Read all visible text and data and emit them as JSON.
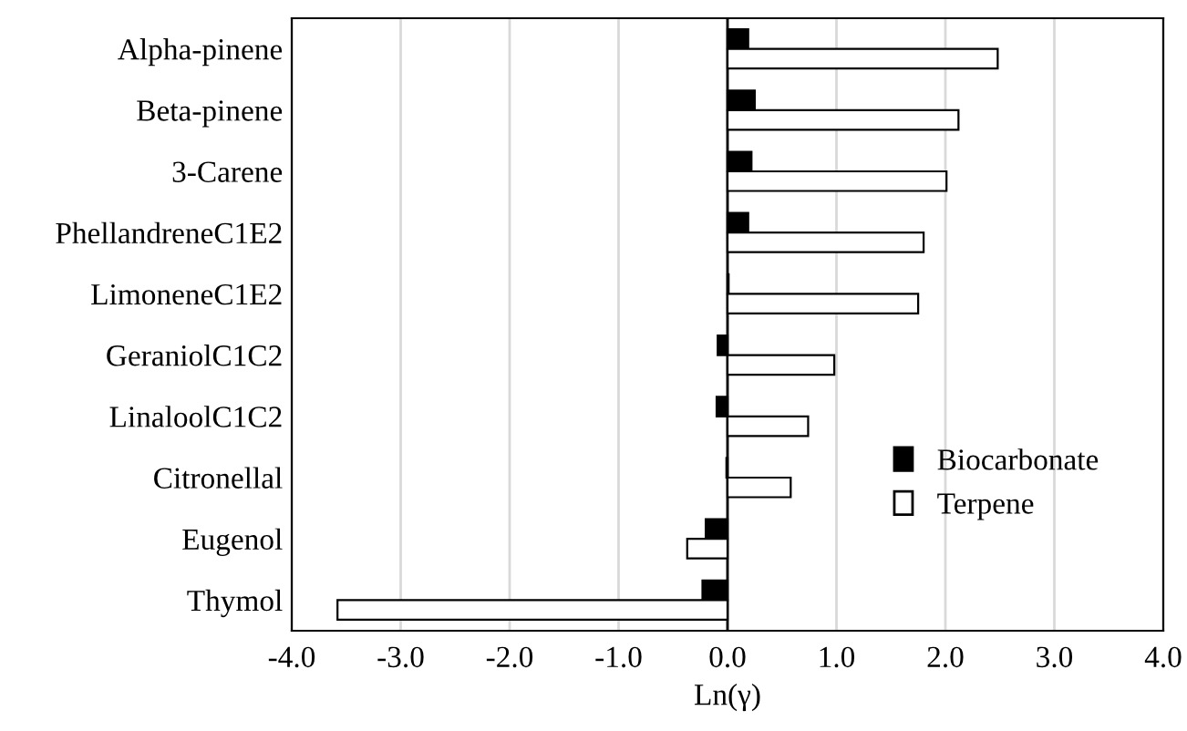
{
  "chart_data": {
    "type": "bar",
    "orientation": "horizontal",
    "xlabel": "Ln(γ)",
    "categories": [
      "Alpha-pinene",
      "Beta-pinene",
      "3-Carene",
      "PhellandreneC1E2",
      "LimoneneC1E2",
      "GeraniolC1C2",
      "LinaloolC1C2",
      "Citronellal",
      "Eugenol",
      "Thymol"
    ],
    "series": [
      {
        "name": "Biocarbonate",
        "color": "#000000",
        "values": [
          0.19,
          0.25,
          0.22,
          0.19,
          0.01,
          -0.09,
          -0.1,
          -0.01,
          -0.2,
          -0.23
        ]
      },
      {
        "name": "Terpene",
        "color": "#ffffff",
        "values": [
          2.48,
          2.12,
          2.01,
          1.8,
          1.75,
          0.98,
          0.74,
          0.58,
          -0.37,
          -3.58
        ]
      }
    ],
    "xlim": [
      -4,
      4
    ],
    "xticks": [
      {
        "value": -4,
        "label": "-4.0"
      },
      {
        "value": -3,
        "label": "-3.0"
      },
      {
        "value": -2,
        "label": "-2.0"
      },
      {
        "value": -1,
        "label": "-1.0"
      },
      {
        "value": 0,
        "label": "0.0"
      },
      {
        "value": 1,
        "label": "1.0"
      },
      {
        "value": 2,
        "label": "2.0"
      },
      {
        "value": 3,
        "label": "3.0"
      },
      {
        "value": 4,
        "label": "4.0"
      }
    ],
    "ref_lines": [
      {
        "axis": "x",
        "value": 0,
        "color": "#000000"
      }
    ],
    "grid": "x",
    "legend": "right"
  }
}
